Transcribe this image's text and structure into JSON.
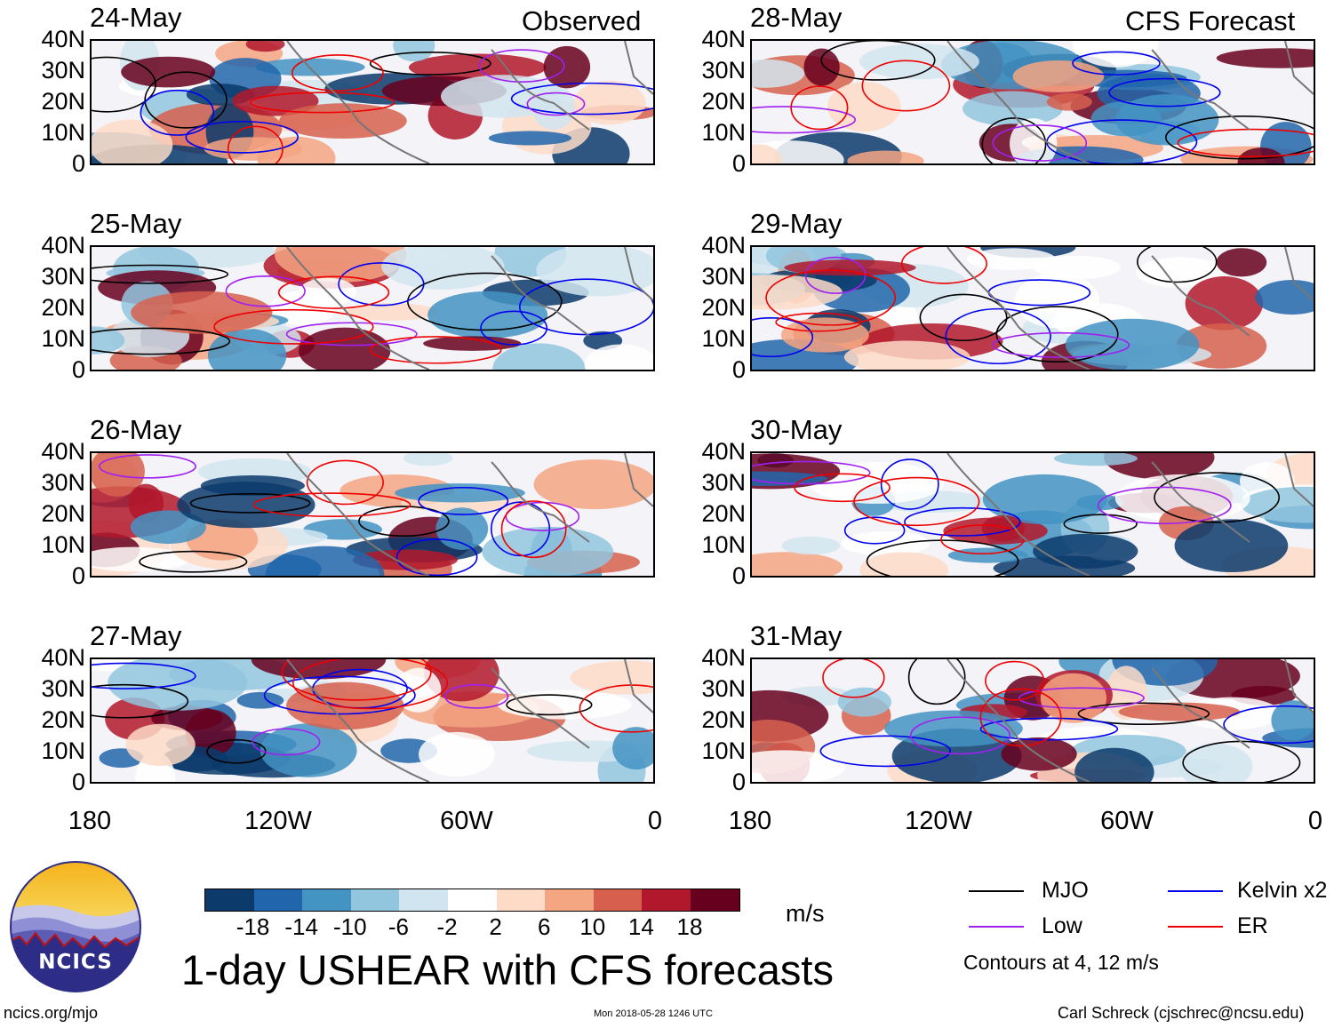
{
  "chart_data": {
    "type": "heatmap",
    "title": "1-day USHEAR with CFS forecasts",
    "units": "m/s",
    "columns": [
      {
        "label": "Observed",
        "panels": [
          "24-May",
          "25-May",
          "26-May",
          "27-May"
        ]
      },
      {
        "label": "CFS Forecast",
        "panels": [
          "28-May",
          "29-May",
          "30-May",
          "31-May"
        ]
      }
    ],
    "y_ticks": [
      "40N",
      "30N",
      "20N",
      "10N",
      "0"
    ],
    "x_ticks": [
      "180",
      "120W",
      "60W",
      "0"
    ],
    "xlim": [
      -180,
      0
    ],
    "ylim": [
      0,
      40
    ],
    "colorbar": {
      "ticks": [
        "-18",
        "-14",
        "-10",
        "-6",
        "-2",
        "2",
        "6",
        "10",
        "14",
        "18"
      ],
      "colors": [
        "#0b3a6b",
        "#2166ac",
        "#4393c3",
        "#92c5de",
        "#d1e5f0",
        "#ffffff",
        "#fddbc7",
        "#f4a582",
        "#d6604d",
        "#b2182b",
        "#67001f"
      ]
    },
    "legend": [
      {
        "label": "MJO",
        "color": "#000000"
      },
      {
        "label": "Kelvin x2",
        "color": "#0000ee"
      },
      {
        "label": "Low",
        "color": "#a020f0"
      },
      {
        "label": "ER",
        "color": "#ee0000"
      }
    ],
    "contour_note": "Contours at 4, 12 m/s"
  },
  "footer": {
    "site": "ncics.org/mjo",
    "timestamp": "Mon 2018-05-28 1246 UTC",
    "author": "Carl Schreck (cjschrec@ncsu.edu)"
  },
  "logo_text": "NCICS"
}
